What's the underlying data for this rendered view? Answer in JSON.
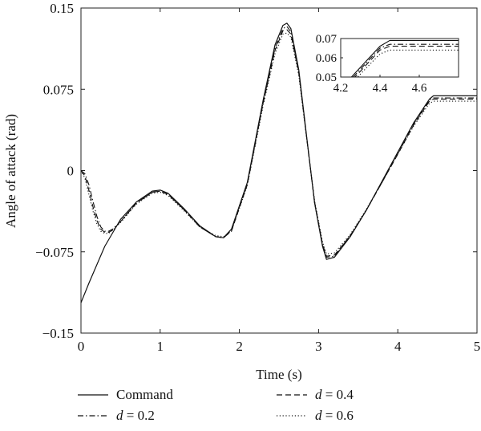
{
  "chart_data": {
    "type": "line",
    "xlabel": "Time (s)",
    "ylabel": "Angle of attack (rad)",
    "xlim": [
      0,
      5
    ],
    "ylim": [
      -0.15,
      0.15
    ],
    "x_ticks": [
      "0",
      "1",
      "2",
      "3",
      "4",
      "5"
    ],
    "y_ticks": [
      "−0.15",
      "−0.075",
      "0",
      "0.075",
      "0.15"
    ],
    "grid": false,
    "legend_position": "bottom",
    "legend": [
      {
        "symbol": "",
        "label": "Command"
      },
      {
        "symbol": "d",
        "label": " = 0.2"
      },
      {
        "symbol": "d",
        "label": " = 0.4"
      },
      {
        "symbol": "d",
        "label": " = 0.6"
      }
    ],
    "series": [
      {
        "name": "Command",
        "style": "solid",
        "x": [
          0,
          0.1,
          0.3,
          0.5,
          0.7,
          0.9,
          1.0,
          1.1,
          1.3,
          1.5,
          1.7,
          1.8,
          1.9,
          2.1,
          2.3,
          2.45,
          2.55,
          2.6,
          2.65,
          2.75,
          2.85,
          2.95,
          3.05,
          3.1,
          3.2,
          3.4,
          3.6,
          3.8,
          4.0,
          4.2,
          4.4,
          4.45,
          5.0
        ],
        "y": [
          -0.122,
          -0.104,
          -0.07,
          -0.045,
          -0.029,
          -0.019,
          -0.018,
          -0.021,
          -0.035,
          -0.051,
          -0.061,
          -0.062,
          -0.054,
          -0.011,
          0.065,
          0.116,
          0.134,
          0.136,
          0.131,
          0.093,
          0.031,
          -0.03,
          -0.07,
          -0.082,
          -0.08,
          -0.061,
          -0.037,
          -0.01,
          0.017,
          0.044,
          0.066,
          0.069,
          0.069
        ]
      },
      {
        "name": "d = 0.2",
        "style": "dashdot",
        "x": [
          0,
          0.05,
          0.1,
          0.15,
          0.2,
          0.25,
          0.3,
          0.35,
          0.4,
          0.5,
          0.7,
          0.9,
          1.0,
          1.1,
          1.3,
          1.5,
          1.7,
          1.8,
          1.9,
          2.1,
          2.3,
          2.45,
          2.55,
          2.6,
          2.65,
          2.75,
          2.85,
          2.95,
          3.05,
          3.1,
          3.2,
          3.4,
          3.6,
          3.8,
          4.0,
          4.2,
          4.4,
          4.45,
          5.0
        ],
        "y": [
          0,
          -0.003,
          -0.013,
          -0.028,
          -0.042,
          -0.052,
          -0.056,
          -0.056,
          -0.054,
          -0.047,
          -0.03,
          -0.02,
          -0.019,
          -0.022,
          -0.036,
          -0.052,
          -0.061,
          -0.062,
          -0.055,
          -0.012,
          0.063,
          0.113,
          0.131,
          0.133,
          0.128,
          0.091,
          0.03,
          -0.03,
          -0.069,
          -0.08,
          -0.079,
          -0.06,
          -0.037,
          -0.011,
          0.016,
          0.043,
          0.065,
          0.067,
          0.067
        ]
      },
      {
        "name": "d = 0.4",
        "style": "dashed",
        "x": [
          0,
          0.05,
          0.1,
          0.15,
          0.2,
          0.25,
          0.3,
          0.35,
          0.4,
          0.5,
          0.7,
          0.9,
          1.0,
          1.1,
          1.3,
          1.5,
          1.7,
          1.8,
          1.9,
          2.1,
          2.3,
          2.45,
          2.55,
          2.6,
          2.65,
          2.75,
          2.85,
          2.95,
          3.05,
          3.1,
          3.2,
          3.4,
          3.6,
          3.8,
          4.0,
          4.2,
          4.4,
          4.45,
          5.0
        ],
        "y": [
          0,
          -0.005,
          -0.018,
          -0.033,
          -0.046,
          -0.054,
          -0.057,
          -0.057,
          -0.055,
          -0.047,
          -0.03,
          -0.02,
          -0.019,
          -0.022,
          -0.036,
          -0.052,
          -0.061,
          -0.062,
          -0.056,
          -0.013,
          0.062,
          0.111,
          0.129,
          0.13,
          0.126,
          0.09,
          0.03,
          -0.029,
          -0.068,
          -0.079,
          -0.078,
          -0.06,
          -0.037,
          -0.011,
          0.015,
          0.042,
          0.064,
          0.066,
          0.066
        ]
      },
      {
        "name": "d = 0.6",
        "style": "dotted",
        "x": [
          0,
          0.05,
          0.1,
          0.15,
          0.2,
          0.25,
          0.3,
          0.35,
          0.4,
          0.5,
          0.7,
          0.9,
          1.0,
          1.1,
          1.3,
          1.5,
          1.7,
          1.8,
          1.9,
          2.1,
          2.3,
          2.45,
          2.55,
          2.6,
          2.65,
          2.75,
          2.85,
          2.95,
          3.05,
          3.1,
          3.2,
          3.4,
          3.6,
          3.8,
          4.0,
          4.2,
          4.4,
          4.45,
          5.0
        ],
        "y": [
          0,
          -0.007,
          -0.022,
          -0.037,
          -0.049,
          -0.056,
          -0.058,
          -0.058,
          -0.055,
          -0.048,
          -0.031,
          -0.021,
          -0.02,
          -0.023,
          -0.037,
          -0.052,
          -0.06,
          -0.061,
          -0.056,
          -0.014,
          0.06,
          0.108,
          0.126,
          0.127,
          0.123,
          0.088,
          0.029,
          -0.028,
          -0.066,
          -0.077,
          -0.076,
          -0.059,
          -0.036,
          -0.011,
          0.015,
          0.041,
          0.062,
          0.064,
          0.064
        ]
      }
    ],
    "inset": {
      "xlim": [
        4.2,
        4.8
      ],
      "ylim": [
        0.05,
        0.07
      ],
      "x_ticks": [
        "4.2",
        "4.4",
        "4.6"
      ],
      "y_ticks": [
        "0.05",
        "0.06",
        "0.07"
      ]
    }
  }
}
